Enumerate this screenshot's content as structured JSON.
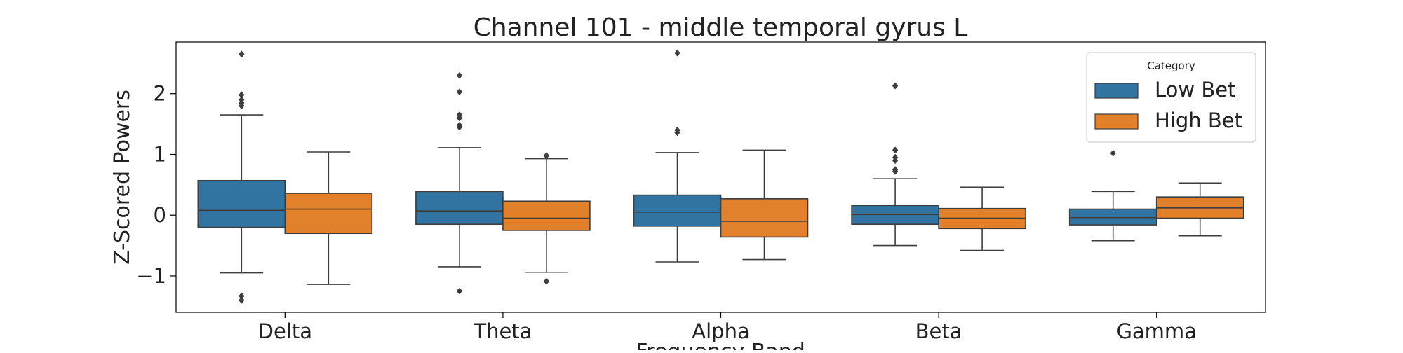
{
  "chart_data": {
    "type": "box",
    "title": "Channel 101 - middle temporal gyrus L",
    "xlabel": "Frequency Band",
    "ylabel": "Z-Scored Powers",
    "categories": [
      "Delta",
      "Theta",
      "Alpha",
      "Beta",
      "Gamma"
    ],
    "yticks": [
      -1,
      0,
      1,
      2
    ],
    "ylim": [
      -1.6,
      2.85
    ],
    "legend": {
      "title": "Category",
      "placement": "top-right",
      "entries": [
        "Low Bet",
        "High Bet"
      ]
    },
    "series": [
      {
        "name": "Low Bet",
        "color": "#3274a1",
        "boxes": [
          {
            "whisker_low": -0.95,
            "q1": -0.2,
            "median": 0.08,
            "q3": 0.57,
            "whisker_high": 1.65,
            "outliers": [
              2.65,
              1.98,
              1.9,
              1.85,
              1.8,
              -1.33,
              -1.4
            ]
          },
          {
            "whisker_low": -0.85,
            "q1": -0.15,
            "median": 0.07,
            "q3": 0.39,
            "whisker_high": 1.11,
            "outliers": [
              2.3,
              2.03,
              1.65,
              1.6,
              1.48,
              1.45,
              -1.25
            ]
          },
          {
            "whisker_low": -0.77,
            "q1": -0.18,
            "median": 0.05,
            "q3": 0.33,
            "whisker_high": 1.03,
            "outliers": [
              2.67,
              1.4,
              1.36
            ]
          },
          {
            "whisker_low": -0.5,
            "q1": -0.15,
            "median": 0.01,
            "q3": 0.16,
            "whisker_high": 0.6,
            "outliers": [
              2.13,
              1.07,
              0.95,
              0.9,
              0.75,
              0.72
            ]
          },
          {
            "whisker_low": -0.42,
            "q1": -0.16,
            "median": -0.04,
            "q3": 0.1,
            "whisker_high": 0.39,
            "outliers": [
              1.02
            ]
          }
        ]
      },
      {
        "name": "High Bet",
        "color": "#e1812c",
        "boxes": [
          {
            "whisker_low": -1.14,
            "q1": -0.3,
            "median": 0.1,
            "q3": 0.36,
            "whisker_high": 1.04,
            "outliers": []
          },
          {
            "whisker_low": -0.94,
            "q1": -0.25,
            "median": -0.05,
            "q3": 0.23,
            "whisker_high": 0.93,
            "outliers": [
              0.98,
              -1.09
            ]
          },
          {
            "whisker_low": -0.73,
            "q1": -0.36,
            "median": -0.1,
            "q3": 0.27,
            "whisker_high": 1.07,
            "outliers": []
          },
          {
            "whisker_low": -0.58,
            "q1": -0.22,
            "median": -0.05,
            "q3": 0.11,
            "whisker_high": 0.46,
            "outliers": []
          },
          {
            "whisker_low": -0.34,
            "q1": -0.05,
            "median": 0.12,
            "q3": 0.3,
            "whisker_high": 0.53,
            "outliers": []
          }
        ]
      }
    ]
  }
}
